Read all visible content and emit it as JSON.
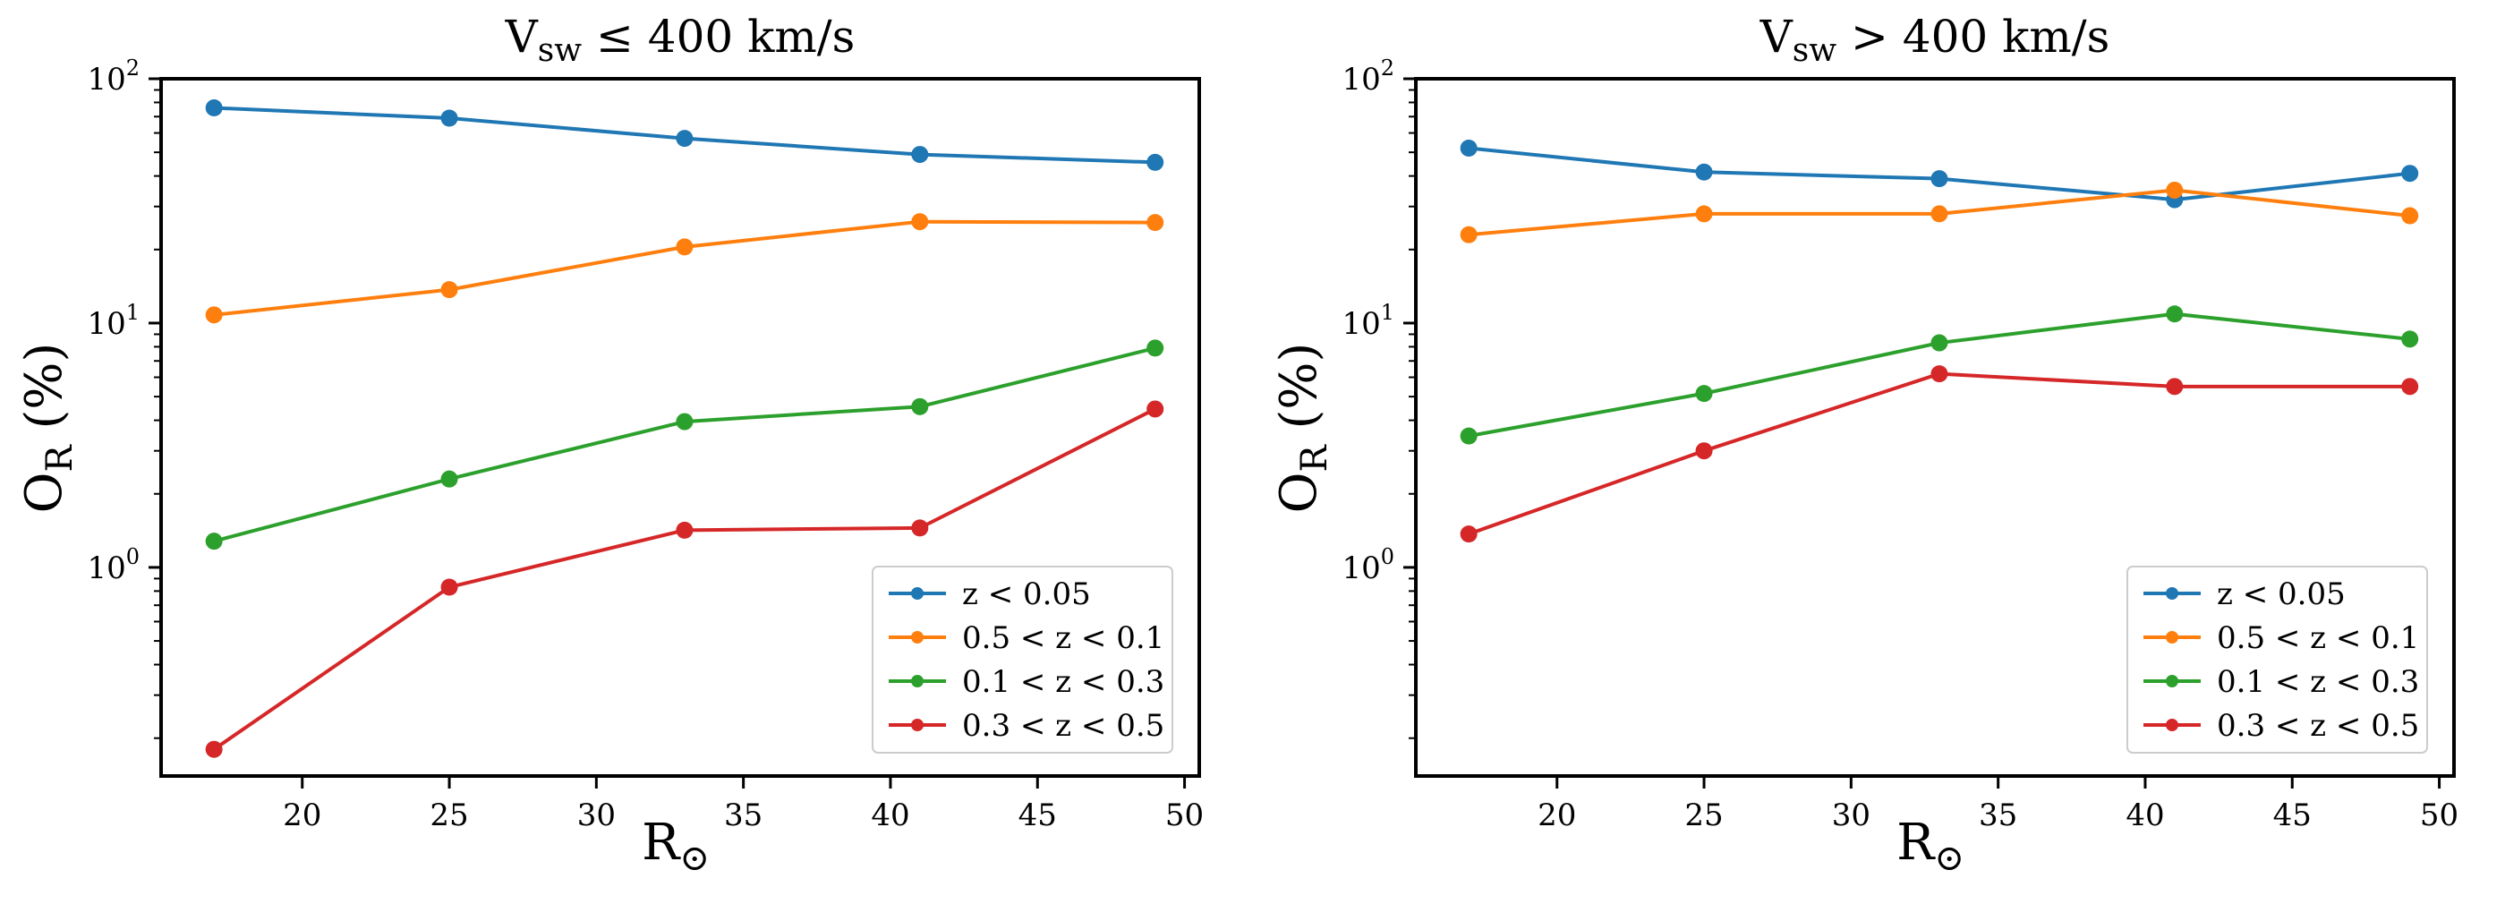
{
  "chart_data": [
    {
      "type": "line",
      "title_main": "V",
      "title_sub": "sw",
      "title_rest": " ≤ 400 km/s",
      "xlabel_main": "R",
      "xlabel_sub": "⊙",
      "ylabel_main": "O",
      "ylabel_sub": "R",
      "ylabel_rest": " (%)",
      "yscale": "log",
      "xlim": [
        15.2,
        50.5
      ],
      "ylim": [
        0.14,
        100
      ],
      "xticks": [
        20,
        25,
        30,
        35,
        40,
        45,
        50
      ],
      "xtick_labels": [
        "20",
        "25",
        "30",
        "35",
        "40",
        "45",
        "50"
      ],
      "yticks": [
        1,
        10,
        100
      ],
      "ytick_bases": [
        "10",
        "10",
        "10"
      ],
      "ytick_exps": [
        "0",
        "1",
        "2"
      ],
      "x": [
        17,
        25,
        33,
        41,
        49
      ],
      "legend_position": "lower-right",
      "series": [
        {
          "name": "z < 0.05",
          "color": "#1f77b4",
          "values": [
            76,
            69,
            57,
            49,
            45.5
          ]
        },
        {
          "name": "0.5 < z < 0.1",
          "color": "#ff7f0e",
          "values": [
            10.8,
            13.7,
            20.5,
            26,
            25.8
          ]
        },
        {
          "name": "0.1 < z < 0.3",
          "color": "#2ca02c",
          "values": [
            1.28,
            2.3,
            3.95,
            4.55,
            7.9
          ]
        },
        {
          "name": "0.3 < z < 0.5",
          "color": "#d62728",
          "values": [
            0.18,
            0.83,
            1.42,
            1.45,
            4.45
          ]
        }
      ]
    },
    {
      "type": "line",
      "title_main": "V",
      "title_sub": "sw",
      "title_rest": " > 400 km/s",
      "xlabel_main": "R",
      "xlabel_sub": "⊙",
      "ylabel_main": "O",
      "ylabel_sub": "R",
      "ylabel_rest": " (%)",
      "yscale": "log",
      "xlim": [
        15.2,
        50.5
      ],
      "ylim": [
        0.14,
        100
      ],
      "xticks": [
        20,
        25,
        30,
        35,
        40,
        45,
        50
      ],
      "xtick_labels": [
        "20",
        "25",
        "30",
        "35",
        "40",
        "45",
        "50"
      ],
      "yticks": [
        1,
        10,
        100
      ],
      "ytick_bases": [
        "10",
        "10",
        "10"
      ],
      "ytick_exps": [
        "0",
        "1",
        "2"
      ],
      "x": [
        17,
        25,
        33,
        41,
        49
      ],
      "legend_position": "lower-right",
      "series": [
        {
          "name": "z < 0.05",
          "color": "#1f77b4",
          "values": [
            52,
            41.5,
            39,
            32,
            41
          ]
        },
        {
          "name": "0.5 < z < 0.1",
          "color": "#ff7f0e",
          "values": [
            23,
            28,
            28,
            35,
            27.5
          ]
        },
        {
          "name": "0.1 < z < 0.3",
          "color": "#2ca02c",
          "values": [
            3.45,
            5.15,
            8.3,
            10.9,
            8.6
          ]
        },
        {
          "name": "0.3 < z < 0.5",
          "color": "#d62728",
          "values": [
            1.37,
            3,
            6.2,
            5.5,
            5.5
          ]
        }
      ]
    }
  ]
}
